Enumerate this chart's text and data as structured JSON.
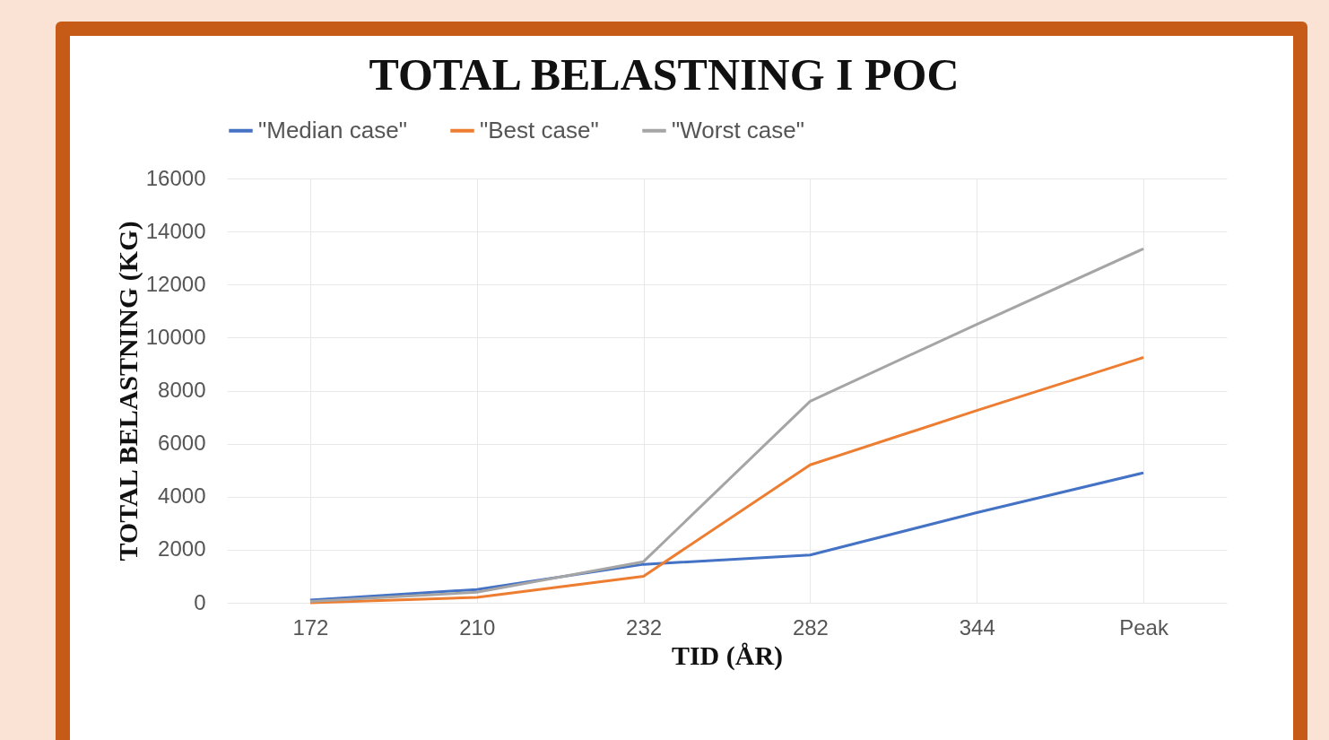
{
  "chart_data": {
    "type": "line",
    "title": "TOTAL BELASTNING I POC",
    "xlabel": "TID (ÅR)",
    "ylabel": "TOTAL BELASTNING (KG)",
    "categories": [
      "172",
      "210",
      "232",
      "282",
      "344",
      "Peak"
    ],
    "series": [
      {
        "name": "\"Median case\"",
        "color": "#4472c4",
        "values": [
          100,
          500,
          1450,
          1800,
          3400,
          4900
        ]
      },
      {
        "name": "\"Best case\"",
        "color": "#ed7d31",
        "values": [
          0,
          200,
          1000,
          5200,
          7250,
          9250
        ]
      },
      {
        "name": "\"Worst case\"",
        "color": "#a5a5a5",
        "values": [
          50,
          400,
          1550,
          7600,
          10500,
          13350
        ]
      }
    ],
    "ylim": [
      0,
      16000
    ],
    "yticks": [
      0,
      2000,
      4000,
      6000,
      8000,
      10000,
      12000,
      14000,
      16000
    ],
    "grid": true,
    "legend": "top",
    "line_style": "solid",
    "marker": "none"
  }
}
